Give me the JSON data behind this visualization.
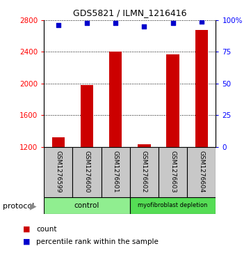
{
  "title": "GDS5821 / ILMN_1216416",
  "samples": [
    "GSM1276599",
    "GSM1276600",
    "GSM1276601",
    "GSM1276602",
    "GSM1276603",
    "GSM1276604"
  ],
  "counts": [
    1320,
    1980,
    2400,
    1230,
    2370,
    2680
  ],
  "percentile_ranks": [
    96,
    98,
    98,
    95,
    98,
    99
  ],
  "ylim_left": [
    1200,
    2800
  ],
  "ylim_right": [
    0,
    100
  ],
  "yticks_left": [
    1200,
    1600,
    2000,
    2400,
    2800
  ],
  "yticks_right": [
    0,
    25,
    50,
    75,
    100
  ],
  "ytick_labels_right": [
    "0",
    "25",
    "50",
    "75",
    "100%"
  ],
  "bar_color": "#CC0000",
  "dot_color": "#0000CC",
  "label_bg_color": "#C8C8C8",
  "ctrl_color": "#90EE90",
  "myo_color": "#55DD55",
  "protocol_label": "protocol",
  "legend_count_label": "count",
  "legend_percentile_label": "percentile rank within the sample",
  "ctrl_label": "control",
  "myo_label": "myofibroblast depletion",
  "title_fontsize": 9,
  "tick_fontsize": 7.5,
  "sample_fontsize": 6.5,
  "legend_fontsize": 7.5,
  "proto_fontsize": 7.5
}
